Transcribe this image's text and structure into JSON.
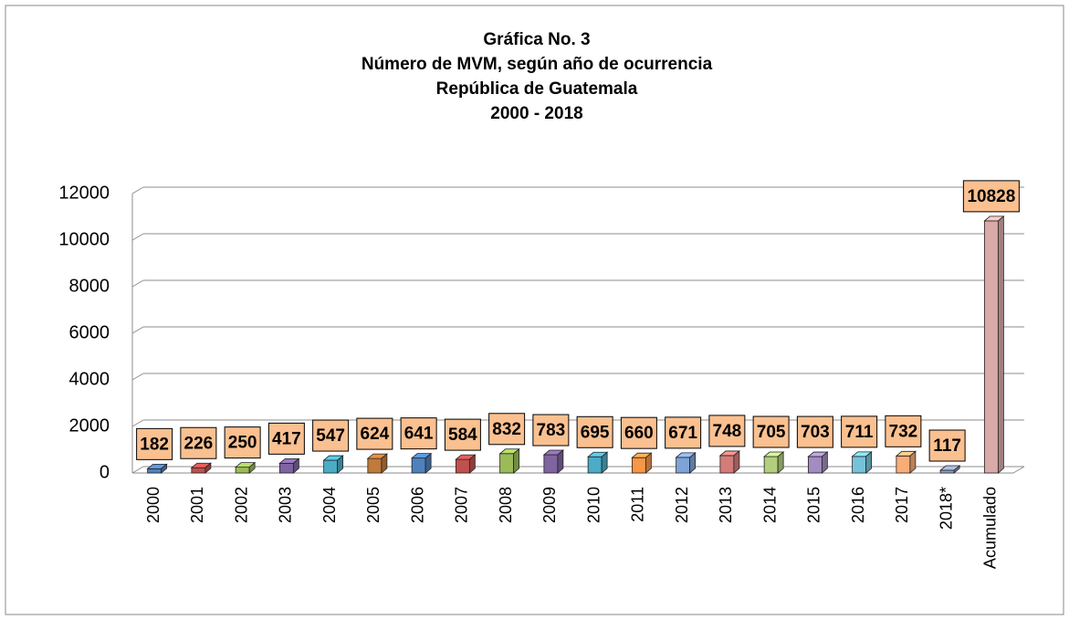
{
  "chart_data": {
    "type": "bar3d",
    "title": [
      "Gráfica No. 3",
      "Número de MVM, según año de ocurrencia",
      "República de Guatemala",
      "2000 - 2018"
    ],
    "categories": [
      "2000",
      "2001",
      "2002",
      "2003",
      "2004",
      "2005",
      "2006",
      "2007",
      "2008",
      "2009",
      "2010",
      "2011",
      "2012",
      "2013",
      "2014",
      "2015",
      "2016",
      "2017",
      "2018*",
      "Acumulado"
    ],
    "values": [
      182,
      226,
      250,
      417,
      547,
      624,
      641,
      584,
      832,
      783,
      695,
      660,
      671,
      748,
      705,
      703,
      711,
      732,
      117,
      10828
    ],
    "colors": [
      "#4f81bd",
      "#c0504d",
      "#9bbb59",
      "#8064a2",
      "#4bacc6",
      "#c07a3a",
      "#4f81bd",
      "#c0504d",
      "#9bbb59",
      "#8064a2",
      "#4bacc6",
      "#f79646",
      "#7ea3d6",
      "#d47c79",
      "#b3cf7e",
      "#a28cc0",
      "#76c3d9",
      "#f9ad76",
      "#8fa2bf",
      "#d9aaa7"
    ],
    "label_box_color": "#fac090",
    "ylim": [
      0,
      12000
    ],
    "yticks": [
      0,
      2000,
      4000,
      6000,
      8000,
      10000,
      12000
    ],
    "grid": true
  }
}
